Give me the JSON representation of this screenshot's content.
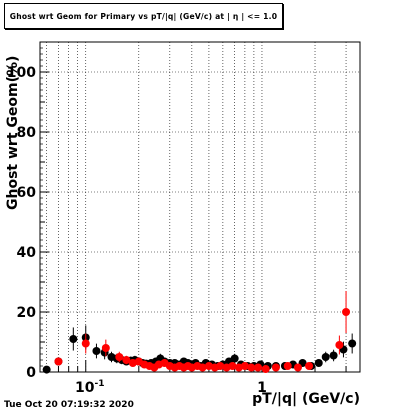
{
  "chart_data": {
    "type": "scatter",
    "title": "Ghost wrt Geom for Primary vs pT/|q| (GeV/c) at | η | <= 1.0",
    "xlabel": "pT/|q| (GeV/c)",
    "ylabel": "Ghost wrt Geom(%)",
    "xscale": "log",
    "xlim": [
      0.055,
      3.6
    ],
    "ylim": [
      0,
      110
    ],
    "xtick_labels": [
      {
        "value": 0.1,
        "label": "10^{-1}"
      },
      {
        "value": 1,
        "label": "1"
      }
    ],
    "yticks": [
      0,
      20,
      40,
      60,
      80,
      100
    ],
    "grid": true,
    "series": [
      {
        "color": "#000000",
        "points": [
          {
            "x": 0.06,
            "y": 0.8
          },
          {
            "x": 0.07,
            "y": 3.5
          },
          {
            "x": 0.085,
            "y": 11
          },
          {
            "x": 0.1,
            "y": 11.5
          },
          {
            "x": 0.115,
            "y": 7
          },
          {
            "x": 0.128,
            "y": 6.5
          },
          {
            "x": 0.14,
            "y": 5
          },
          {
            "x": 0.15,
            "y": 4.5
          },
          {
            "x": 0.16,
            "y": 4
          },
          {
            "x": 0.17,
            "y": 3.5
          },
          {
            "x": 0.18,
            "y": 3.8
          },
          {
            "x": 0.19,
            "y": 4
          },
          {
            "x": 0.2,
            "y": 3.5
          },
          {
            "x": 0.21,
            "y": 3
          },
          {
            "x": 0.22,
            "y": 2.8
          },
          {
            "x": 0.235,
            "y": 3
          },
          {
            "x": 0.25,
            "y": 3.5
          },
          {
            "x": 0.265,
            "y": 4.5
          },
          {
            "x": 0.28,
            "y": 3.5
          },
          {
            "x": 0.3,
            "y": 3
          },
          {
            "x": 0.32,
            "y": 3
          },
          {
            "x": 0.34,
            "y": 2.5
          },
          {
            "x": 0.36,
            "y": 3.5
          },
          {
            "x": 0.38,
            "y": 3
          },
          {
            "x": 0.4,
            "y": 2.5
          },
          {
            "x": 0.42,
            "y": 3
          },
          {
            "x": 0.45,
            "y": 2
          },
          {
            "x": 0.48,
            "y": 3
          },
          {
            "x": 0.52,
            "y": 2.5
          },
          {
            "x": 0.56,
            "y": 2
          },
          {
            "x": 0.6,
            "y": 2.5
          },
          {
            "x": 0.65,
            "y": 3.5
          },
          {
            "x": 0.7,
            "y": 4.5
          },
          {
            "x": 0.76,
            "y": 2.5
          },
          {
            "x": 0.83,
            "y": 2
          },
          {
            "x": 0.9,
            "y": 2
          },
          {
            "x": 0.98,
            "y": 2.5
          },
          {
            "x": 1.08,
            "y": 2
          },
          {
            "x": 1.2,
            "y": 2
          },
          {
            "x": 1.35,
            "y": 2
          },
          {
            "x": 1.5,
            "y": 2.5
          },
          {
            "x": 1.7,
            "y": 3
          },
          {
            "x": 1.9,
            "y": 2
          },
          {
            "x": 2.1,
            "y": 3
          },
          {
            "x": 2.3,
            "y": 5
          },
          {
            "x": 2.55,
            "y": 5.5
          },
          {
            "x": 2.9,
            "y": 7.5
          },
          {
            "x": 3.25,
            "y": 9.5
          }
        ]
      },
      {
        "color": "#ff0000",
        "points": [
          {
            "x": 0.07,
            "y": 3.5
          },
          {
            "x": 0.1,
            "y": 9.5
          },
          {
            "x": 0.13,
            "y": 8
          },
          {
            "x": 0.155,
            "y": 5
          },
          {
            "x": 0.17,
            "y": 4
          },
          {
            "x": 0.185,
            "y": 3
          },
          {
            "x": 0.2,
            "y": 3.5
          },
          {
            "x": 0.215,
            "y": 2.5
          },
          {
            "x": 0.23,
            "y": 2
          },
          {
            "x": 0.245,
            "y": 1.5
          },
          {
            "x": 0.26,
            "y": 2.5
          },
          {
            "x": 0.28,
            "y": 3
          },
          {
            "x": 0.3,
            "y": 2
          },
          {
            "x": 0.32,
            "y": 1.5
          },
          {
            "x": 0.34,
            "y": 2
          },
          {
            "x": 0.36,
            "y": 1.5
          },
          {
            "x": 0.38,
            "y": 2
          },
          {
            "x": 0.4,
            "y": 1.5
          },
          {
            "x": 0.43,
            "y": 2
          },
          {
            "x": 0.46,
            "y": 1.5
          },
          {
            "x": 0.5,
            "y": 2
          },
          {
            "x": 0.54,
            "y": 1.5
          },
          {
            "x": 0.58,
            "y": 2
          },
          {
            "x": 0.63,
            "y": 1.5
          },
          {
            "x": 0.68,
            "y": 2
          },
          {
            "x": 0.74,
            "y": 1.5
          },
          {
            "x": 0.8,
            "y": 2
          },
          {
            "x": 0.87,
            "y": 1.5
          },
          {
            "x": 0.95,
            "y": 1.5
          },
          {
            "x": 1.05,
            "y": 1
          },
          {
            "x": 1.2,
            "y": 1.5
          },
          {
            "x": 1.4,
            "y": 2
          },
          {
            "x": 1.6,
            "y": 1.5
          },
          {
            "x": 1.85,
            "y": 2
          },
          {
            "x": 2.75,
            "y": 9
          },
          {
            "x": 3.0,
            "y": 20
          }
        ]
      }
    ],
    "footer_timestamp": "Tue Oct 20 07:19:32 2020"
  }
}
